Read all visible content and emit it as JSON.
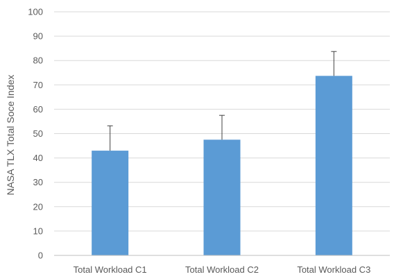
{
  "chart_data": {
    "type": "bar",
    "categories": [
      "Total Workload C1",
      "Total Workload C2",
      "Total Workload C3"
    ],
    "values": [
      43,
      47.5,
      73.7
    ],
    "error_plus": [
      10.2,
      10,
      10
    ],
    "title": "",
    "xlabel": "",
    "ylabel": "NASA TLX Total Soce Index",
    "ylim": [
      0,
      100
    ],
    "yticks": [
      0,
      10,
      20,
      30,
      40,
      50,
      60,
      70,
      80,
      90,
      100
    ],
    "grid": true,
    "bar_color": "#5b9bd5"
  }
}
